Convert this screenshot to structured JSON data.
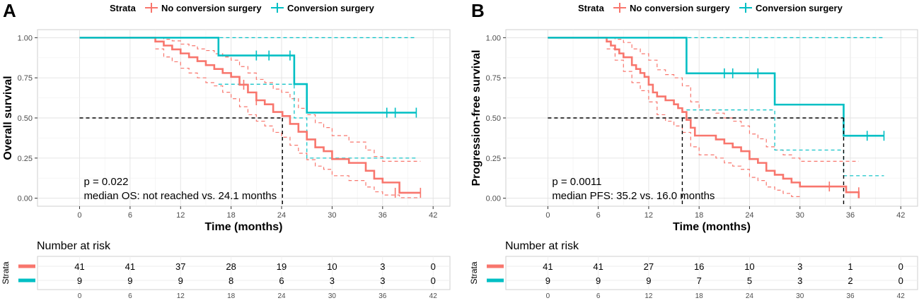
{
  "chart_data": [
    {
      "type": "line",
      "panel_label": "A",
      "legend": {
        "title": "Strata",
        "entries": [
          "No conversion surgery",
          "Conversion surgery"
        ],
        "placement": "top"
      },
      "xlabel": "Time (months)",
      "ylabel": "Overall survival",
      "xlim": [
        -5,
        44
      ],
      "ylim": [
        -0.05,
        1.05
      ],
      "xticks": [
        "0",
        "6",
        "12",
        "18",
        "24",
        "30",
        "36",
        "42"
      ],
      "yticks": [
        "0.00",
        "0.25",
        "0.50",
        "0.75",
        "1.00"
      ],
      "grid": true,
      "annotation_p": "p = 0.022",
      "annotation_median": "median OS: not reached vs. 24.1 months",
      "median_reference": {
        "y": 0.5,
        "x_end": 24.1
      },
      "series": [
        {
          "name": "No conversion surgery",
          "color": "#F8766D",
          "steps": [
            [
              0,
              1
            ],
            [
              9,
              1
            ],
            [
              9,
              0.976
            ],
            [
              10,
              0.951
            ],
            [
              11,
              0.927
            ],
            [
              12,
              0.902
            ],
            [
              13,
              0.878
            ],
            [
              14,
              0.854
            ],
            [
              15,
              0.829
            ],
            [
              16,
              0.805
            ],
            [
              17,
              0.78
            ],
            [
              18,
              0.756
            ],
            [
              19,
              0.707
            ],
            [
              20,
              0.659
            ],
            [
              21,
              0.61
            ],
            [
              22,
              0.585
            ],
            [
              23,
              0.537
            ],
            [
              24.1,
              0.512
            ],
            [
              25,
              0.463
            ],
            [
              26,
              0.414
            ],
            [
              27,
              0.366
            ],
            [
              28,
              0.317
            ],
            [
              29,
              0.293
            ],
            [
              30,
              0.244
            ],
            [
              32,
              0.22
            ],
            [
              34,
              0.171
            ],
            [
              35,
              0.122
            ],
            [
              36,
              0.098
            ],
            [
              38,
              0.034
            ],
            [
              40.5,
              0.034
            ]
          ],
          "lower": [
            [
              9,
              0.93
            ],
            [
              10,
              0.88
            ],
            [
              11,
              0.85
            ],
            [
              12,
              0.81
            ],
            [
              13,
              0.78
            ],
            [
              14,
              0.75
            ],
            [
              15,
              0.72
            ],
            [
              16,
              0.7
            ],
            [
              17,
              0.66
            ],
            [
              18,
              0.62
            ],
            [
              19,
              0.57
            ],
            [
              20,
              0.52
            ],
            [
              21,
              0.48
            ],
            [
              22,
              0.45
            ],
            [
              23,
              0.41
            ],
            [
              24,
              0.38
            ],
            [
              25,
              0.33
            ],
            [
              26,
              0.28
            ],
            [
              27,
              0.24
            ],
            [
              28,
              0.2
            ],
            [
              29,
              0.18
            ],
            [
              30,
              0.14
            ],
            [
              32,
              0.11
            ],
            [
              34,
              0.07
            ],
            [
              35,
              0.04
            ],
            [
              36,
              0.02
            ],
            [
              38,
              0.003
            ],
            [
              40.5,
              0.003
            ]
          ],
          "upper": [
            [
              9,
              1
            ],
            [
              10,
              0.99
            ],
            [
              11,
              0.98
            ],
            [
              12,
              0.96
            ],
            [
              13,
              0.95
            ],
            [
              14,
              0.93
            ],
            [
              15,
              0.92
            ],
            [
              16,
              0.9
            ],
            [
              17,
              0.88
            ],
            [
              18,
              0.86
            ],
            [
              19,
              0.82
            ],
            [
              20,
              0.78
            ],
            [
              21,
              0.74
            ],
            [
              22,
              0.72
            ],
            [
              23,
              0.68
            ],
            [
              24,
              0.66
            ],
            [
              25,
              0.62
            ],
            [
              26,
              0.56
            ],
            [
              27,
              0.52
            ],
            [
              28,
              0.47
            ],
            [
              29,
              0.44
            ],
            [
              30,
              0.39
            ],
            [
              32,
              0.35
            ],
            [
              34,
              0.3
            ],
            [
              35,
              0.26
            ],
            [
              36,
              0.23
            ],
            [
              38,
              0.23
            ],
            [
              40.5,
              0.23
            ]
          ],
          "censors": [
            [
              19.5,
              0.707
            ],
            [
              21,
              0.61
            ],
            [
              37.5,
              0.034
            ],
            [
              40.5,
              0.034
            ]
          ]
        },
        {
          "name": "Conversion surgery",
          "color": "#00BFC4",
          "steps": [
            [
              0,
              1
            ],
            [
              16.5,
              1
            ],
            [
              16.5,
              0.889
            ],
            [
              25.5,
              0.889
            ],
            [
              25.5,
              0.711
            ],
            [
              27,
              0.711
            ],
            [
              27,
              0.533
            ],
            [
              40,
              0.533
            ]
          ],
          "lower": [
            [
              16.5,
              0.71
            ],
            [
              25.5,
              0.71
            ],
            [
              25.5,
              0.5
            ],
            [
              27,
              0.5
            ],
            [
              27,
              0.25
            ],
            [
              40,
              0.25
            ]
          ],
          "upper": [
            [
              0,
              1
            ],
            [
              40,
              1
            ]
          ],
          "censors": [
            [
              21,
              0.889
            ],
            [
              22.5,
              0.889
            ],
            [
              25,
              0.889
            ],
            [
              36.5,
              0.533
            ],
            [
              37.5,
              0.533
            ],
            [
              40,
              0.533
            ]
          ]
        }
      ],
      "risk_table": {
        "title": "Number at risk",
        "strata_label": "Strata",
        "times": [
          "0",
          "6",
          "12",
          "18",
          "24",
          "30",
          "36",
          "42"
        ],
        "rows": [
          {
            "name": "No conversion surgery",
            "values": [
              "41",
              "41",
              "37",
              "28",
              "19",
              "10",
              "3",
              "0"
            ]
          },
          {
            "name": "Conversion surgery",
            "values": [
              "9",
              "9",
              "9",
              "8",
              "6",
              "3",
              "3",
              "0"
            ]
          }
        ]
      }
    },
    {
      "type": "line",
      "panel_label": "B",
      "legend": {
        "title": "Strata",
        "entries": [
          "No conversion surgery",
          "Conversion surgery"
        ],
        "placement": "top"
      },
      "xlabel": "Time (months)",
      "ylabel": "Progression-free survival",
      "xlim": [
        -5,
        44
      ],
      "ylim": [
        -0.05,
        1.05
      ],
      "xticks": [
        "0",
        "6",
        "12",
        "18",
        "24",
        "30",
        "36",
        "42"
      ],
      "yticks": [
        "0.00",
        "0.25",
        "0.50",
        "0.75",
        "1.00"
      ],
      "grid": true,
      "annotation_p": "p = 0.0011",
      "annotation_median": "median PFS: 35.2 vs. 16.0 months",
      "median_reference": {
        "y": 0.5,
        "x_end": 35.2,
        "x_end_2": 16.0
      },
      "series": [
        {
          "name": "No conversion surgery",
          "color": "#F8766D",
          "steps": [
            [
              0,
              1
            ],
            [
              7,
              1
            ],
            [
              7,
              0.976
            ],
            [
              7.5,
              0.951
            ],
            [
              8,
              0.927
            ],
            [
              8.5,
              0.902
            ],
            [
              9,
              0.878
            ],
            [
              10,
              0.829
            ],
            [
              10.5,
              0.805
            ],
            [
              11,
              0.78
            ],
            [
              11.5,
              0.756
            ],
            [
              12,
              0.707
            ],
            [
              12.5,
              0.659
            ],
            [
              13,
              0.634
            ],
            [
              14,
              0.61
            ],
            [
              15,
              0.585
            ],
            [
              15.5,
              0.561
            ],
            [
              16,
              0.537
            ],
            [
              16.5,
              0.488
            ],
            [
              17,
              0.439
            ],
            [
              17.5,
              0.39
            ],
            [
              20,
              0.366
            ],
            [
              21,
              0.341
            ],
            [
              22,
              0.317
            ],
            [
              23,
              0.293
            ],
            [
              24,
              0.244
            ],
            [
              25,
              0.22
            ],
            [
              26,
              0.171
            ],
            [
              27,
              0.146
            ],
            [
              28,
              0.122
            ],
            [
              29,
              0.098
            ],
            [
              30,
              0.073
            ],
            [
              33.5,
              0.073
            ],
            [
              35.5,
              0.037
            ],
            [
              37,
              0.037
            ],
            [
              37,
              0.0
            ]
          ],
          "lower": [
            [
              7,
              0.93
            ],
            [
              8,
              0.86
            ],
            [
              9,
              0.79
            ],
            [
              10,
              0.72
            ],
            [
              11,
              0.67
            ],
            [
              12,
              0.6
            ],
            [
              13,
              0.52
            ],
            [
              14,
              0.48
            ],
            [
              15,
              0.45
            ],
            [
              16,
              0.41
            ],
            [
              17,
              0.32
            ],
            [
              18,
              0.27
            ],
            [
              20,
              0.25
            ],
            [
              21,
              0.22
            ],
            [
              22,
              0.2
            ],
            [
              23,
              0.18
            ],
            [
              24,
              0.13
            ],
            [
              25,
              0.11
            ],
            [
              26,
              0.07
            ],
            [
              27,
              0.05
            ],
            [
              28,
              0.03
            ],
            [
              29,
              0.01
            ],
            [
              30,
              0.0
            ]
          ],
          "upper": [
            [
              7,
              1
            ],
            [
              8,
              0.99
            ],
            [
              9,
              0.97
            ],
            [
              10,
              0.93
            ],
            [
              11,
              0.9
            ],
            [
              12,
              0.86
            ],
            [
              13,
              0.8
            ],
            [
              14,
              0.77
            ],
            [
              15,
              0.75
            ],
            [
              16,
              0.7
            ],
            [
              17,
              0.6
            ],
            [
              18,
              0.55
            ],
            [
              20,
              0.53
            ],
            [
              21,
              0.5
            ],
            [
              22,
              0.48
            ],
            [
              23,
              0.45
            ],
            [
              24,
              0.4
            ],
            [
              25,
              0.37
            ],
            [
              26,
              0.32
            ],
            [
              27,
              0.3
            ],
            [
              28,
              0.27
            ],
            [
              29,
              0.25
            ],
            [
              30,
              0.23
            ],
            [
              37,
              0.23
            ]
          ],
          "censors": [
            [
              33.5,
              0.073
            ],
            [
              37,
              0.037
            ]
          ]
        },
        {
          "name": "Conversion surgery",
          "color": "#00BFC4",
          "steps": [
            [
              0,
              1
            ],
            [
              16.5,
              1
            ],
            [
              16.5,
              0.778
            ],
            [
              27,
              0.778
            ],
            [
              27,
              0.583
            ],
            [
              35.2,
              0.583
            ],
            [
              35.2,
              0.389
            ],
            [
              40,
              0.389
            ]
          ],
          "lower": [
            [
              16.5,
              0.55
            ],
            [
              27,
              0.55
            ],
            [
              27,
              0.3
            ],
            [
              35.2,
              0.3
            ],
            [
              35.2,
              0.14
            ],
            [
              40,
              0.14
            ]
          ],
          "upper": [
            [
              0,
              1
            ],
            [
              40,
              1
            ]
          ],
          "censors": [
            [
              21,
              0.778
            ],
            [
              22,
              0.778
            ],
            [
              25,
              0.778
            ],
            [
              38,
              0.389
            ],
            [
              40,
              0.389
            ]
          ]
        }
      ],
      "risk_table": {
        "title": "Number at risk",
        "strata_label": "Strata",
        "times": [
          "0",
          "6",
          "12",
          "18",
          "24",
          "30",
          "36",
          "42"
        ],
        "rows": [
          {
            "name": "No conversion surgery",
            "values": [
              "41",
              "41",
              "27",
              "16",
              "10",
              "3",
              "1",
              "0"
            ]
          },
          {
            "name": "Conversion surgery",
            "values": [
              "9",
              "9",
              "9",
              "7",
              "5",
              "3",
              "2",
              "0"
            ]
          }
        ]
      }
    }
  ]
}
